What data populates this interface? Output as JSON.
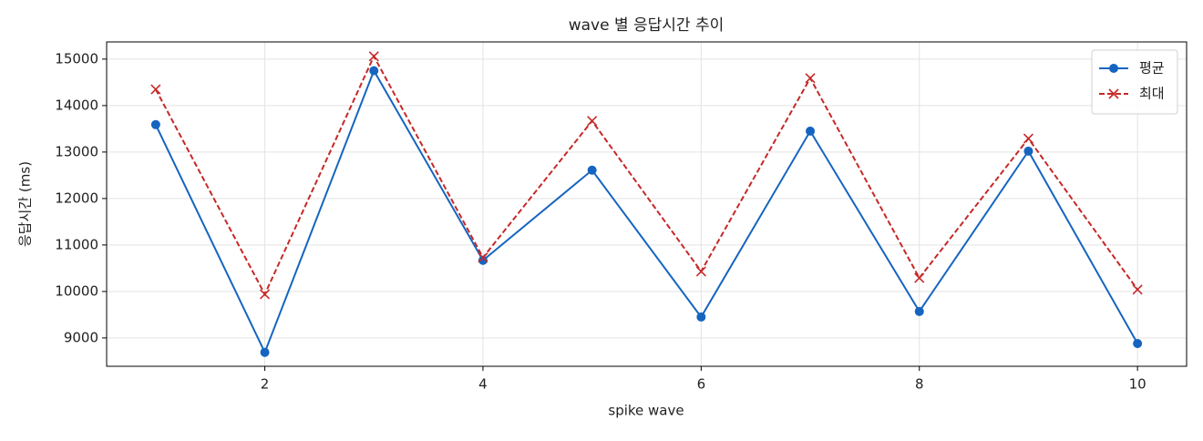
{
  "chart_data": {
    "type": "line",
    "title": "wave 별 응답시간 추이",
    "xlabel": "spike wave",
    "ylabel": "응답시간 (ms)",
    "x": [
      1,
      2,
      3,
      4,
      5,
      6,
      7,
      8,
      9,
      10
    ],
    "series": [
      {
        "name": "평균",
        "color": "#1565c0",
        "marker": "o",
        "linestyle": "solid",
        "values": [
          13590,
          8690,
          14750,
          10670,
          12610,
          9450,
          13450,
          9570,
          13020,
          8880
        ]
      },
      {
        "name": "최대",
        "color": "#c62828",
        "marker": "x",
        "linestyle": "dashed",
        "values": [
          14350,
          9940,
          15060,
          10730,
          13670,
          10430,
          14590,
          10290,
          13290,
          10040
        ]
      }
    ],
    "xlim": [
      0.55,
      10.45
    ],
    "xticks": [
      2,
      4,
      6,
      8,
      10
    ],
    "ylim": [
      8390,
      15370
    ],
    "yticks": [
      9000,
      10000,
      11000,
      12000,
      13000,
      14000,
      15000
    ],
    "grid": true,
    "legend": "upper right"
  }
}
